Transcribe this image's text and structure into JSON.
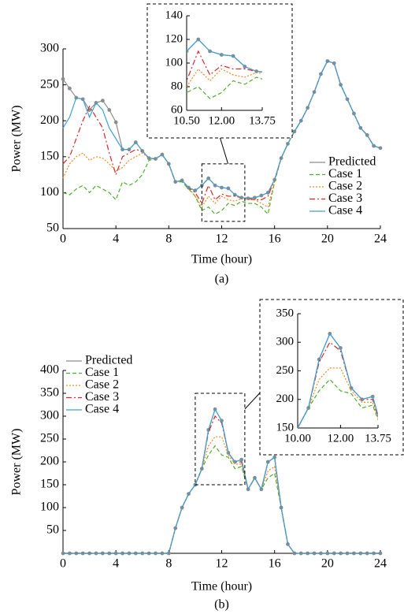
{
  "chart_data": [
    {
      "type": "line",
      "caption": "(a)",
      "xlabel": "Time (hour)",
      "ylabel": "Power (MW)",
      "x": [
        0,
        0.5,
        1,
        1.5,
        2,
        2.5,
        3,
        3.5,
        4,
        4.5,
        5,
        5.5,
        6,
        6.5,
        7,
        7.5,
        8,
        8.5,
        9,
        9.5,
        10,
        10.5,
        11,
        11.5,
        12,
        12.5,
        13,
        13.5,
        14,
        14.5,
        15,
        15.5,
        16,
        16.5,
        17,
        17.5,
        18,
        18.5,
        19,
        19.5,
        20,
        20.5,
        21,
        21.5,
        22,
        22.5,
        23,
        23.5,
        24
      ],
      "xlim": [
        0,
        24
      ],
      "xticks": [
        0,
        4,
        8,
        12,
        16,
        20,
        24
      ],
      "ylim": [
        50,
        300
      ],
      "yticks": [
        50,
        100,
        150,
        200,
        250,
        300
      ],
      "legend": "lower right",
      "series": [
        {
          "name": "Predicted",
          "color": "#8c8c8c",
          "dash": "solid",
          "markers": true,
          "values": [
            258,
            245,
            232,
            230,
            215,
            225,
            228,
            215,
            198,
            160,
            160,
            170,
            158,
            148,
            147,
            153,
            140,
            115,
            117,
            107,
            103,
            110,
            120,
            110,
            107,
            106,
            97,
            93,
            92,
            93,
            96,
            100,
            118,
            148,
            168,
            185,
            200,
            218,
            240,
            265,
            283,
            280,
            250,
            230,
            210,
            190,
            180,
            165,
            162
          ]
        },
        {
          "name": "Case 1",
          "color": "#4daf2a",
          "dash": "dashed",
          "markers": false,
          "values": [
            100,
            97,
            105,
            110,
            100,
            110,
            105,
            100,
            90,
            115,
            110,
            115,
            125,
            145,
            147,
            153,
            140,
            115,
            115,
            105,
            95,
            75,
            80,
            70,
            75,
            85,
            82,
            88,
            85,
            85,
            80,
            70,
            115,
            148,
            168,
            185,
            200,
            218,
            240,
            265,
            283,
            280,
            250,
            230,
            210,
            190,
            180,
            165,
            162
          ]
        },
        {
          "name": "Case 2",
          "color": "#f08a24",
          "dash": "dotted",
          "markers": false,
          "values": [
            120,
            140,
            150,
            155,
            145,
            150,
            148,
            140,
            130,
            135,
            145,
            150,
            155,
            148,
            147,
            153,
            140,
            115,
            117,
            107,
            95,
            80,
            95,
            85,
            95,
            90,
            88,
            92,
            90,
            90,
            85,
            80,
            115,
            148,
            168,
            185,
            200,
            218,
            240,
            265,
            283,
            280,
            250,
            230,
            210,
            190,
            180,
            165,
            162
          ]
        },
        {
          "name": "Case 3",
          "color": "#d62728",
          "dash": "dashdot",
          "markers": false,
          "values": [
            140,
            150,
            175,
            200,
            220,
            205,
            190,
            155,
            125,
            150,
            155,
            160,
            158,
            148,
            147,
            153,
            140,
            115,
            117,
            107,
            100,
            85,
            110,
            90,
            98,
            95,
            95,
            93,
            92,
            90,
            90,
            95,
            118,
            148,
            168,
            185,
            200,
            218,
            240,
            265,
            283,
            280,
            250,
            230,
            210,
            190,
            180,
            165,
            162
          ]
        },
        {
          "name": "Case 4",
          "color": "#3fa0d0",
          "dash": "solid",
          "markers": false,
          "values": [
            190,
            205,
            232,
            230,
            205,
            225,
            215,
            190,
            175,
            160,
            160,
            170,
            158,
            148,
            147,
            153,
            140,
            115,
            117,
            107,
            103,
            110,
            120,
            110,
            107,
            106,
            97,
            93,
            92,
            93,
            96,
            100,
            118,
            148,
            168,
            185,
            200,
            218,
            240,
            265,
            283,
            280,
            250,
            230,
            210,
            190,
            180,
            165,
            162
          ]
        }
      ],
      "inset": {
        "xlim": [
          10.5,
          13.75
        ],
        "ylim": [
          60,
          140
        ],
        "xticks": [
          {
            "value": 10.5,
            "label": "10.50"
          },
          {
            "value": 12,
            "label": "12.00"
          },
          {
            "value": 13.75,
            "label": "13.75"
          }
        ],
        "yticks": [
          60,
          80,
          100,
          120,
          140
        ]
      }
    },
    {
      "type": "line",
      "caption": "(b)",
      "xlabel": "Time (hour)",
      "ylabel": "Power (MW)",
      "x": [
        0,
        0.5,
        1,
        1.5,
        2,
        2.5,
        3,
        3.5,
        4,
        4.5,
        5,
        5.5,
        6,
        6.5,
        7,
        7.5,
        8,
        8.5,
        9,
        9.5,
        10,
        10.5,
        11,
        11.5,
        12,
        12.5,
        13,
        13.5,
        14,
        14.5,
        15,
        15.5,
        16,
        16.5,
        17,
        17.5,
        18,
        18.5,
        19,
        19.5,
        20,
        20.5,
        21,
        21.5,
        22,
        22.5,
        23,
        23.5,
        24
      ],
      "xlim": [
        0,
        24
      ],
      "xticks": [
        0,
        4,
        8,
        12,
        16,
        20,
        24
      ],
      "ylim": [
        0,
        400
      ],
      "yticks": [
        50,
        100,
        150,
        200,
        250,
        300,
        350,
        400
      ],
      "legend": "upper left",
      "series": [
        {
          "name": "Predicted",
          "color": "#8c8c8c",
          "dash": "solid",
          "markers": true,
          "values": [
            0,
            0,
            0,
            0,
            0,
            0,
            0,
            0,
            0,
            0,
            0,
            0,
            0,
            0,
            0,
            0,
            0,
            55,
            100,
            130,
            150,
            185,
            270,
            315,
            290,
            220,
            200,
            205,
            140,
            165,
            140,
            200,
            210,
            100,
            20,
            0,
            0,
            0,
            0,
            0,
            0,
            0,
            0,
            0,
            0,
            0,
            0,
            0,
            0
          ]
        },
        {
          "name": "Case 1",
          "color": "#4daf2a",
          "dash": "dashed",
          "markers": false,
          "values": [
            0,
            0,
            0,
            0,
            0,
            0,
            0,
            0,
            0,
            0,
            0,
            0,
            0,
            0,
            0,
            0,
            0,
            55,
            100,
            130,
            150,
            185,
            215,
            235,
            215,
            210,
            185,
            190,
            140,
            165,
            140,
            165,
            175,
            100,
            20,
            0,
            0,
            0,
            0,
            0,
            0,
            0,
            0,
            0,
            0,
            0,
            0,
            0,
            0
          ]
        },
        {
          "name": "Case 2",
          "color": "#f08a24",
          "dash": "dotted",
          "markers": false,
          "values": [
            0,
            0,
            0,
            0,
            0,
            0,
            0,
            0,
            0,
            0,
            0,
            0,
            0,
            0,
            0,
            0,
            0,
            55,
            100,
            130,
            150,
            185,
            235,
            255,
            255,
            215,
            195,
            195,
            140,
            165,
            140,
            180,
            190,
            100,
            20,
            0,
            0,
            0,
            0,
            0,
            0,
            0,
            0,
            0,
            0,
            0,
            0,
            0,
            0
          ]
        },
        {
          "name": "Case 3",
          "color": "#d62728",
          "dash": "dashdot",
          "markers": false,
          "values": [
            0,
            0,
            0,
            0,
            0,
            0,
            0,
            0,
            0,
            0,
            0,
            0,
            0,
            0,
            0,
            0,
            0,
            55,
            100,
            130,
            150,
            185,
            265,
            300,
            285,
            220,
            200,
            200,
            140,
            165,
            140,
            200,
            210,
            100,
            20,
            0,
            0,
            0,
            0,
            0,
            0,
            0,
            0,
            0,
            0,
            0,
            0,
            0,
            0
          ]
        },
        {
          "name": "Case 4",
          "color": "#3fa0d0",
          "dash": "solid",
          "markers": false,
          "values": [
            0,
            0,
            0,
            0,
            0,
            0,
            0,
            0,
            0,
            0,
            0,
            0,
            0,
            0,
            0,
            0,
            0,
            55,
            100,
            130,
            150,
            185,
            270,
            315,
            290,
            220,
            200,
            205,
            140,
            165,
            140,
            200,
            210,
            100,
            20,
            0,
            0,
            0,
            0,
            0,
            0,
            0,
            0,
            0,
            0,
            0,
            0,
            0,
            0
          ]
        }
      ],
      "inset": {
        "xlim": [
          10,
          13.75
        ],
        "ylim": [
          150,
          350
        ],
        "xticks": [
          {
            "value": 10,
            "label": "10.00"
          },
          {
            "value": 12,
            "label": "12.00"
          },
          {
            "value": 13.75,
            "label": "13.75"
          }
        ],
        "yticks": [
          150,
          200,
          250,
          300,
          350
        ]
      }
    }
  ]
}
